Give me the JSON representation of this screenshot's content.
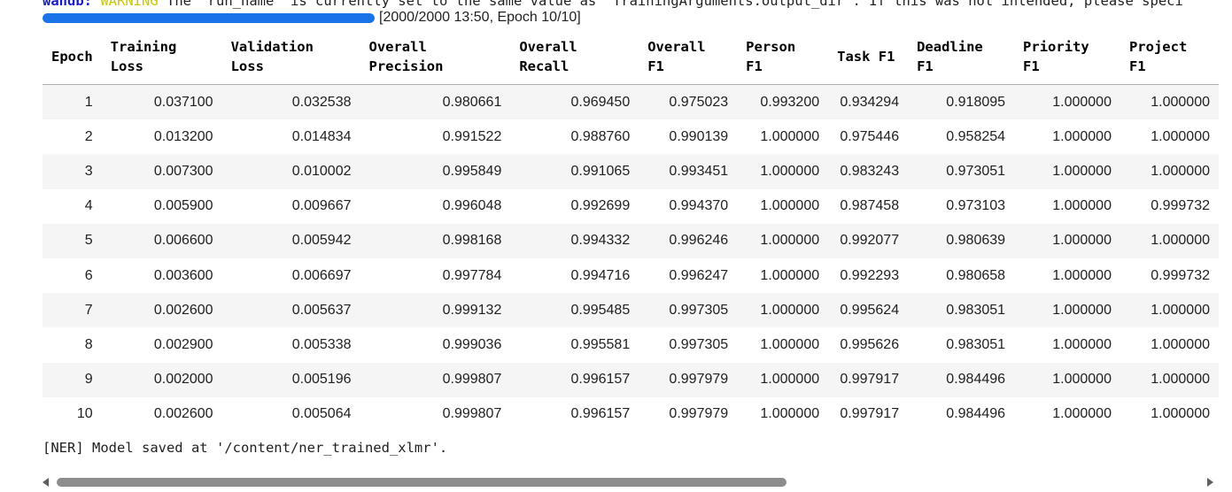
{
  "warning": {
    "prefix": "wandb:",
    "level": "WARNING",
    "message": "The `run_name` is currently set to the same value as `TrainingArguments.output_dir`. If this was not intended, please speci"
  },
  "progress": {
    "value": 1.0,
    "text": "[2000/2000 13:50, Epoch 10/10]",
    "color": "#1a73e8"
  },
  "table": {
    "headers": [
      "Epoch",
      "Training\nLoss",
      "Validation\nLoss",
      "Overall\nPrecision",
      "Overall\nRecall",
      "Overall\nF1",
      "Person\nF1",
      "Task F1",
      "Deadline\nF1",
      "Priority\nF1",
      "Project\nF1"
    ],
    "rows": [
      [
        "1",
        "0.037100",
        "0.032538",
        "0.980661",
        "0.969450",
        "0.975023",
        "0.993200",
        "0.934294",
        "0.918095",
        "1.000000",
        "1.000000"
      ],
      [
        "2",
        "0.013200",
        "0.014834",
        "0.991522",
        "0.988760",
        "0.990139",
        "1.000000",
        "0.975446",
        "0.958254",
        "1.000000",
        "1.000000"
      ],
      [
        "3",
        "0.007300",
        "0.010002",
        "0.995849",
        "0.991065",
        "0.993451",
        "1.000000",
        "0.983243",
        "0.973051",
        "1.000000",
        "1.000000"
      ],
      [
        "4",
        "0.005900",
        "0.009667",
        "0.996048",
        "0.992699",
        "0.994370",
        "1.000000",
        "0.987458",
        "0.973103",
        "1.000000",
        "0.999732"
      ],
      [
        "5",
        "0.006600",
        "0.005942",
        "0.998168",
        "0.994332",
        "0.996246",
        "1.000000",
        "0.992077",
        "0.980639",
        "1.000000",
        "1.000000"
      ],
      [
        "6",
        "0.003600",
        "0.006697",
        "0.997784",
        "0.994716",
        "0.996247",
        "1.000000",
        "0.992293",
        "0.980658",
        "1.000000",
        "0.999732"
      ],
      [
        "7",
        "0.002600",
        "0.005637",
        "0.999132",
        "0.995485",
        "0.997305",
        "1.000000",
        "0.995624",
        "0.983051",
        "1.000000",
        "1.000000"
      ],
      [
        "8",
        "0.002900",
        "0.005338",
        "0.999036",
        "0.995581",
        "0.997305",
        "1.000000",
        "0.995626",
        "0.983051",
        "1.000000",
        "1.000000"
      ],
      [
        "9",
        "0.002000",
        "0.005196",
        "0.999807",
        "0.996157",
        "0.997979",
        "1.000000",
        "0.997917",
        "0.984496",
        "1.000000",
        "1.000000"
      ],
      [
        "10",
        "0.002600",
        "0.005064",
        "0.999807",
        "0.996157",
        "0.997979",
        "1.000000",
        "0.997917",
        "0.984496",
        "1.000000",
        "1.000000"
      ]
    ]
  },
  "saved_message": "[NER] Model saved at '/content/ner_trained_xlmr'.",
  "scrollbar": {
    "left_icon": "scroll-left-arrow-icon",
    "right_icon": "scroll-right-arrow-icon"
  }
}
